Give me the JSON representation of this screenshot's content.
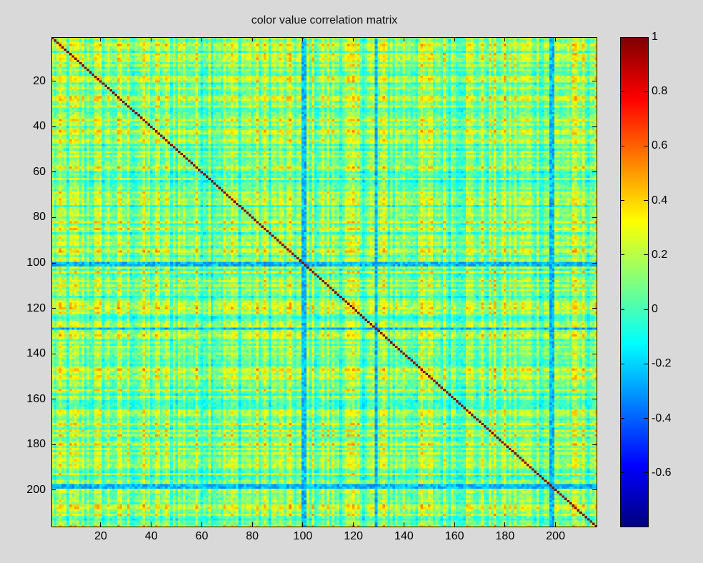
{
  "chart_data": {
    "type": "heatmap",
    "title": "color value correlation matrix",
    "xlabel": "",
    "ylabel": "",
    "matrix_size": 216,
    "xlim": [
      0.5,
      216.5
    ],
    "ylim": [
      0.5,
      216.5
    ],
    "x_ticks": [
      "20",
      "40",
      "60",
      "80",
      "100",
      "120",
      "140",
      "160",
      "180",
      "200"
    ],
    "y_ticks": [
      "20",
      "40",
      "60",
      "80",
      "100",
      "120",
      "140",
      "160",
      "180",
      "200"
    ],
    "tick_values": [
      20,
      40,
      60,
      80,
      100,
      120,
      140,
      160,
      180,
      200
    ],
    "diagonal_value": 1,
    "colormap": "jet",
    "color_range": [
      -0.8,
      1
    ],
    "colorbar_ticks": [
      "1",
      "0.8",
      "0.6",
      "0.4",
      "0.2",
      "0",
      "-0.2",
      "-0.4",
      "-0.6"
    ],
    "colorbar_tick_values": [
      1,
      0.8,
      0.6,
      0.4,
      0.2,
      0,
      -0.2,
      -0.4,
      -0.6
    ],
    "low_correlation_columns": [
      100,
      101,
      129,
      198,
      199
    ],
    "grid": false
  }
}
